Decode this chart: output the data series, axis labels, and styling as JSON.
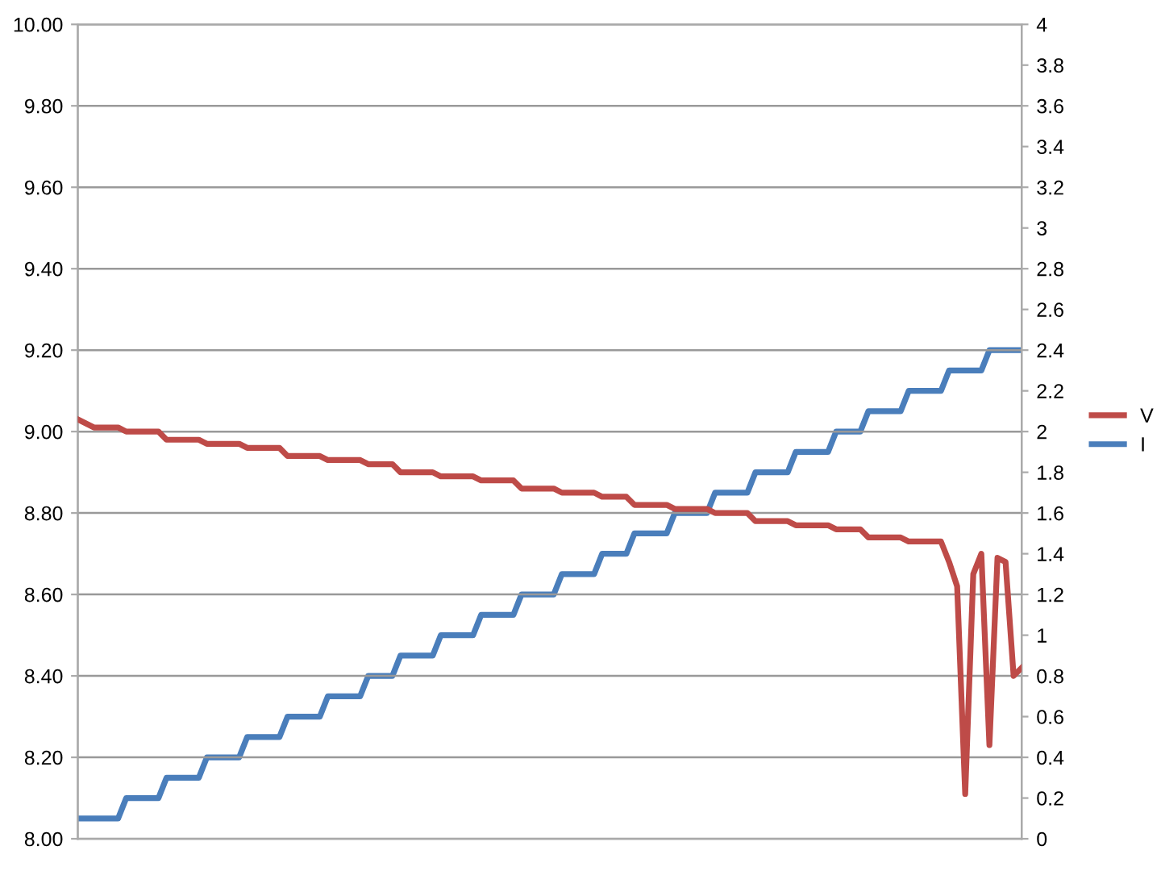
{
  "chart_data": {
    "type": "line",
    "categories": [
      null,
      null,
      null,
      null,
      null,
      null,
      null,
      null,
      null,
      null,
      null,
      null,
      null,
      null,
      null,
      null,
      null,
      null,
      null,
      null,
      null,
      null,
      null,
      null,
      null,
      null,
      null,
      null,
      null,
      null,
      null,
      null,
      null,
      null,
      null,
      null,
      null,
      null,
      null,
      null,
      null,
      null,
      null,
      null,
      null,
      null,
      null,
      null,
      null,
      null,
      null,
      null,
      null,
      null,
      null,
      null,
      null,
      null,
      null,
      null,
      null,
      null,
      null,
      null,
      null,
      null,
      null,
      null,
      null,
      null,
      null,
      null,
      null,
      null,
      null,
      null,
      null,
      null,
      null,
      null,
      null,
      null,
      null,
      null,
      null,
      null,
      null,
      null,
      null,
      null,
      null,
      null,
      null,
      null,
      null,
      null,
      null,
      null,
      null,
      null,
      null,
      null,
      null,
      null,
      null,
      null,
      null,
      null,
      null,
      null,
      null,
      null,
      null,
      null,
      null,
      null,
      null,
      null
    ],
    "series": [
      {
        "name": "V",
        "color": "#be4b48",
        "axis": "y",
        "values": [
          9.03,
          9.02,
          9.01,
          9.01,
          9.01,
          9.01,
          9.0,
          9.0,
          9.0,
          9.0,
          9.0,
          8.98,
          8.98,
          8.98,
          8.98,
          8.98,
          8.97,
          8.97,
          8.97,
          8.97,
          8.97,
          8.96,
          8.96,
          8.96,
          8.96,
          8.96,
          8.94,
          8.94,
          8.94,
          8.94,
          8.94,
          8.93,
          8.93,
          8.93,
          8.93,
          8.93,
          8.92,
          8.92,
          8.92,
          8.92,
          8.9,
          8.9,
          8.9,
          8.9,
          8.9,
          8.89,
          8.89,
          8.89,
          8.89,
          8.89,
          8.88,
          8.88,
          8.88,
          8.88,
          8.88,
          8.86,
          8.86,
          8.86,
          8.86,
          8.86,
          8.85,
          8.85,
          8.85,
          8.85,
          8.85,
          8.84,
          8.84,
          8.84,
          8.84,
          8.82,
          8.82,
          8.82,
          8.82,
          8.82,
          8.81,
          8.81,
          8.81,
          8.81,
          8.81,
          8.8,
          8.8,
          8.8,
          8.8,
          8.8,
          8.78,
          8.78,
          8.78,
          8.78,
          8.78,
          8.77,
          8.77,
          8.77,
          8.77,
          8.77,
          8.76,
          8.76,
          8.76,
          8.76,
          8.74,
          8.74,
          8.74,
          8.74,
          8.74,
          8.73,
          8.73,
          8.73,
          8.73,
          8.73,
          8.68,
          8.62,
          8.11,
          8.65,
          8.7,
          8.23,
          8.69,
          8.68,
          8.4,
          8.42
        ]
      },
      {
        "name": "I",
        "color": "#4a7ebb",
        "axis": "y2",
        "values": [
          0.1,
          0.1,
          0.1,
          0.1,
          0.1,
          0.1,
          0.2,
          0.2,
          0.2,
          0.2,
          0.2,
          0.3,
          0.3,
          0.3,
          0.3,
          0.3,
          0.4,
          0.4,
          0.4,
          0.4,
          0.4,
          0.5,
          0.5,
          0.5,
          0.5,
          0.5,
          0.6,
          0.6,
          0.6,
          0.6,
          0.6,
          0.7,
          0.7,
          0.7,
          0.7,
          0.7,
          0.8,
          0.8,
          0.8,
          0.8,
          0.9,
          0.9,
          0.9,
          0.9,
          0.9,
          1.0,
          1.0,
          1.0,
          1.0,
          1.0,
          1.1,
          1.1,
          1.1,
          1.1,
          1.1,
          1.2,
          1.2,
          1.2,
          1.2,
          1.2,
          1.3,
          1.3,
          1.3,
          1.3,
          1.3,
          1.4,
          1.4,
          1.4,
          1.4,
          1.5,
          1.5,
          1.5,
          1.5,
          1.5,
          1.6,
          1.6,
          1.6,
          1.6,
          1.6,
          1.7,
          1.7,
          1.7,
          1.7,
          1.7,
          1.8,
          1.8,
          1.8,
          1.8,
          1.8,
          1.9,
          1.9,
          1.9,
          1.9,
          1.9,
          2.0,
          2.0,
          2.0,
          2.0,
          2.1,
          2.1,
          2.1,
          2.1,
          2.1,
          2.2,
          2.2,
          2.2,
          2.2,
          2.2,
          2.3,
          2.3,
          2.3,
          2.3,
          2.3,
          2.4,
          2.4,
          2.4,
          2.4,
          2.4
        ]
      }
    ],
    "ylim": [
      8,
      10
    ],
    "yticks": [
      {
        "value": 8,
        "label": "8.00"
      },
      {
        "value": 8.2,
        "label": "8.20"
      },
      {
        "value": 8.4,
        "label": "8.40"
      },
      {
        "value": 8.6,
        "label": "8.60"
      },
      {
        "value": 8.8,
        "label": "8.80"
      },
      {
        "value": 9,
        "label": "9.00"
      },
      {
        "value": 9.2,
        "label": "9.20"
      },
      {
        "value": 9.4,
        "label": "9.40"
      },
      {
        "value": 9.6,
        "label": "9.60"
      },
      {
        "value": 9.8,
        "label": "9.80"
      },
      {
        "value": 10,
        "label": "10.00"
      }
    ],
    "y2lim": [
      0,
      4
    ],
    "y2ticks": [
      0,
      0.2,
      0.4,
      0.6,
      0.8,
      1,
      1.2,
      1.4,
      1.6,
      1.8,
      2,
      2.2,
      2.4,
      2.6,
      2.8,
      3,
      3.2,
      3.4,
      3.6,
      3.8,
      4
    ],
    "grid": "y",
    "legend": "right",
    "marker": "none",
    "line_style": "solid"
  }
}
